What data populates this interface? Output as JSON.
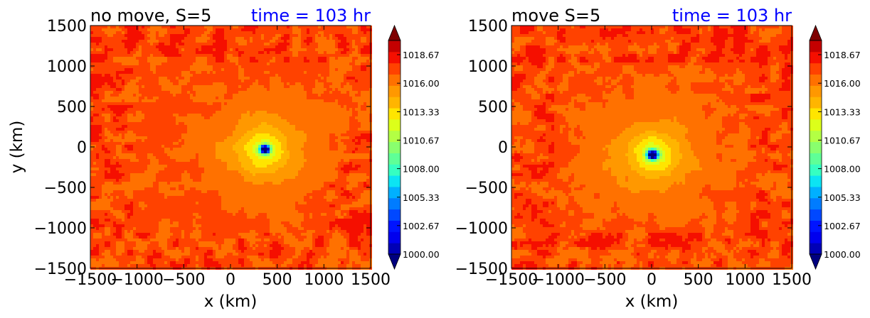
{
  "chart_data": [
    {
      "type": "heatmap",
      "title": "no move, S=5",
      "time_label": "time = 103 hr",
      "time_label_color": "#0000ff",
      "xlabel": "x (km)",
      "ylabel": "y (km)",
      "xlim": [
        -1500,
        1500
      ],
      "ylim": [
        -1500,
        1500
      ],
      "xticks": [
        "−1500",
        "−1000",
        "−500",
        "0",
        "500",
        "1000",
        "1500"
      ],
      "yticks": [
        "−1500",
        "−1000",
        "−500",
        "0",
        "500",
        "1000",
        "1500"
      ],
      "field": "pressure (contourf)",
      "center": [
        370,
        -30
      ],
      "central_min": 1000,
      "background_level": 1016.3,
      "colormap": "jet"
    },
    {
      "type": "heatmap",
      "title": "move S=5",
      "time_label": "time = 103 hr",
      "time_label_color": "#0000ff",
      "xlabel": "x (km)",
      "ylabel": "",
      "xlim": [
        -1500,
        1500
      ],
      "ylim": [
        -1500,
        1500
      ],
      "xticks": [
        "−1500",
        "−1000",
        "−500",
        "0",
        "500",
        "1000",
        "1500"
      ],
      "yticks": [
        "−1500",
        "−1000",
        "−500",
        "0",
        "500",
        "1000",
        "1500"
      ],
      "field": "pressure (contourf)",
      "center": [
        10,
        -100
      ],
      "central_min": 1000,
      "background_level": 1016.3,
      "colormap": "jet"
    }
  ],
  "colorbar": {
    "vmin": 1000.0,
    "vmax": 1020.0,
    "ticks": [
      1000.0,
      1002.67,
      1005.33,
      1008.0,
      1010.67,
      1013.33,
      1016.0,
      1018.67
    ],
    "tick_labels": [
      "1000.00",
      "1002.67",
      "1005.33",
      "1008.00",
      "1010.67",
      "1013.33",
      "1016.00",
      "1018.67"
    ],
    "colors": [
      "#00007f",
      "#0000b6",
      "#0000ee",
      "#0014ff",
      "#0048ff",
      "#007cff",
      "#00b0ff",
      "#0ce4f3",
      "#36ffc1",
      "#5fff97",
      "#89ff6e",
      "#b3ff44",
      "#dcff1a",
      "#ffe500",
      "#ffb500",
      "#ff9800",
      "#ff7100",
      "#ff4200",
      "#f50f00",
      "#c40000",
      "#7f0000"
    ]
  }
}
